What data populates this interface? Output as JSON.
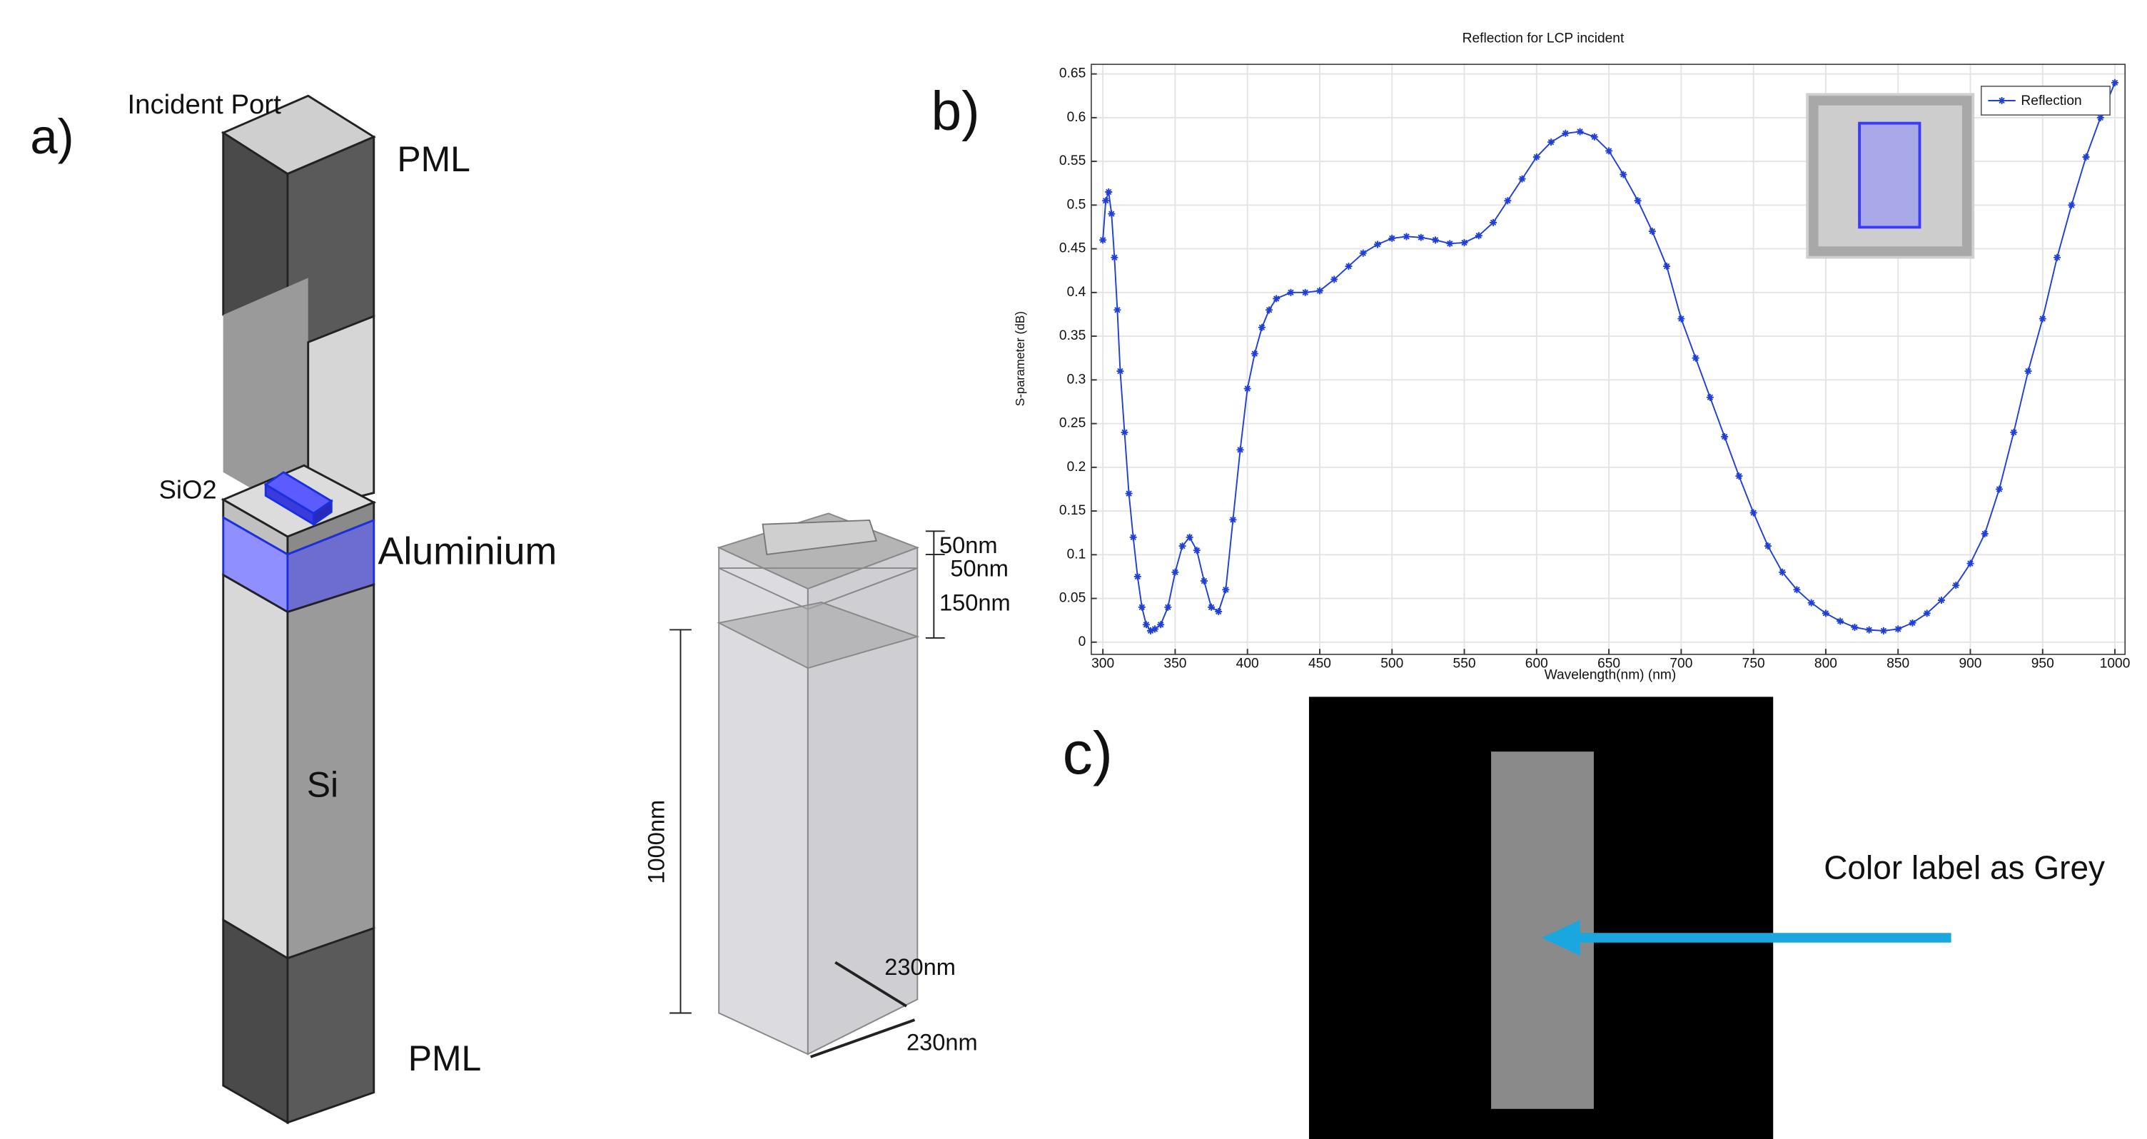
{
  "chart_data": {
    "type": "line",
    "title": "Reflection for LCP incident",
    "x_label": "Wavelength(nm) (nm)",
    "y_label": "S-parameter (dB)",
    "x": [
      300,
      302,
      304,
      306,
      308,
      310,
      312,
      315,
      318,
      321,
      324,
      327,
      330,
      333,
      336,
      340,
      345,
      350,
      355,
      360,
      365,
      370,
      375,
      380,
      385,
      390,
      395,
      400,
      405,
      410,
      415,
      420,
      430,
      440,
      450,
      460,
      470,
      480,
      490,
      500,
      510,
      520,
      530,
      540,
      550,
      560,
      570,
      580,
      590,
      600,
      610,
      620,
      630,
      640,
      650,
      660,
      670,
      680,
      690,
      700,
      710,
      720,
      730,
      740,
      750,
      760,
      770,
      780,
      790,
      800,
      810,
      820,
      830,
      840,
      850,
      860,
      870,
      880,
      890,
      900,
      910,
      920,
      930,
      940,
      950,
      960,
      970,
      980,
      990,
      1000
    ],
    "series": [
      {
        "name": "Reflection",
        "color": "#1f3fd8",
        "values": [
          0.46,
          0.505,
          0.515,
          0.49,
          0.44,
          0.38,
          0.31,
          0.24,
          0.17,
          0.12,
          0.075,
          0.04,
          0.02,
          0.013,
          0.015,
          0.02,
          0.04,
          0.08,
          0.11,
          0.12,
          0.105,
          0.07,
          0.04,
          0.035,
          0.06,
          0.14,
          0.22,
          0.29,
          0.33,
          0.36,
          0.38,
          0.393,
          0.4,
          0.4,
          0.402,
          0.415,
          0.43,
          0.445,
          0.455,
          0.462,
          0.464,
          0.463,
          0.46,
          0.456,
          0.457,
          0.465,
          0.48,
          0.505,
          0.53,
          0.555,
          0.572,
          0.582,
          0.584,
          0.578,
          0.562,
          0.535,
          0.505,
          0.47,
          0.43,
          0.37,
          0.325,
          0.28,
          0.235,
          0.19,
          0.148,
          0.11,
          0.08,
          0.06,
          0.045,
          0.033,
          0.024,
          0.017,
          0.014,
          0.013,
          0.015,
          0.022,
          0.033,
          0.048,
          0.065,
          0.09,
          0.124,
          0.175,
          0.24,
          0.31,
          0.37,
          0.44,
          0.5,
          0.555,
          0.6,
          0.64
        ]
      }
    ],
    "xlim": [
      292,
      1007
    ],
    "ylim": [
      -0.014,
      0.661
    ],
    "xticks": [
      300,
      350,
      400,
      450,
      500,
      550,
      600,
      650,
      700,
      750,
      800,
      850,
      900,
      950,
      1000
    ],
    "yticks": [
      0,
      0.05,
      0.1,
      0.15,
      0.2,
      0.25,
      0.3,
      0.35,
      0.4,
      0.45,
      0.5,
      0.55,
      0.6,
      0.65
    ],
    "grid": true,
    "legend": "upper right"
  },
  "panels": {
    "a": {
      "label": "a)",
      "incident_port": "Incident Port",
      "pml_top": "PML",
      "sio2": "SiO2",
      "aluminium": "Aluminium",
      "si": "Si",
      "pml_bottom": "PML",
      "dims": [
        "50nm",
        "50nm",
        "150nm",
        "1000nm",
        "230nm",
        "230nm"
      ]
    },
    "b": {
      "label": "b)"
    },
    "c": {
      "label": "c)",
      "note": "Color label as Grey"
    }
  }
}
